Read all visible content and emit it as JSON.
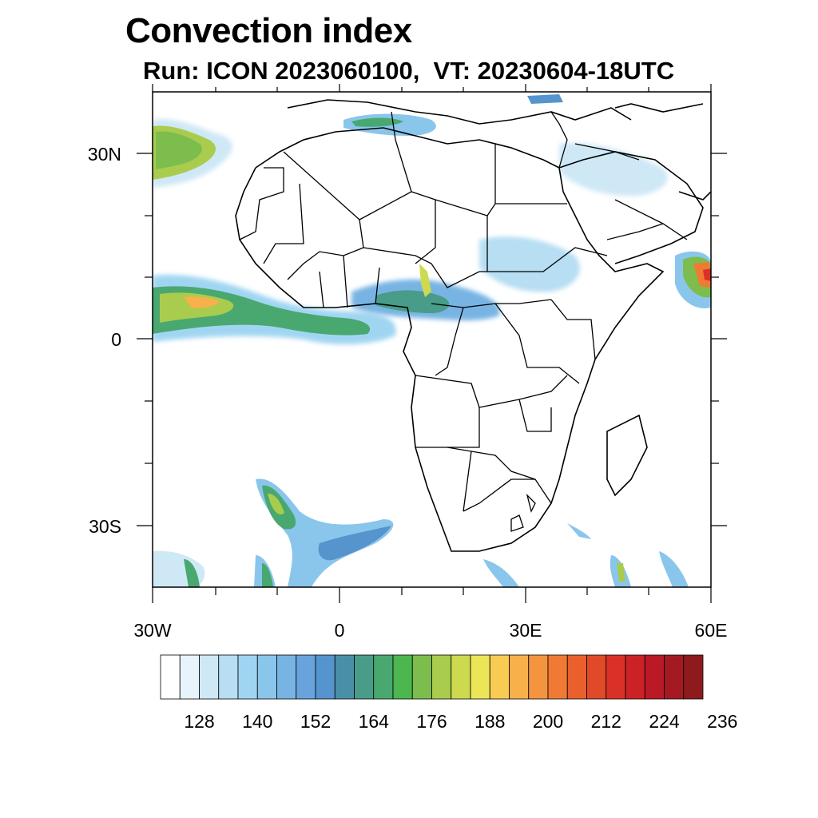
{
  "title": "Convection index",
  "subtitle": "Run: ICON 2023060100,  VT: 20230604-18UTC",
  "y_axis_labels": [
    {
      "text": "30N",
      "lat": 30
    },
    {
      "text": "0",
      "lat": 0
    },
    {
      "text": "30S",
      "lat": -30
    }
  ],
  "x_axis_labels": [
    {
      "text": "30W",
      "lon": -30
    },
    {
      "text": "0",
      "lon": 0
    },
    {
      "text": "30E",
      "lon": 30
    },
    {
      "text": "60E",
      "lon": 60
    }
  ],
  "map_extent": {
    "lon_min": -30,
    "lon_max": 60,
    "lat_min": -40,
    "lat_max": 40
  },
  "colorbar": {
    "colors": [
      "#ffffff",
      "#e8f4fb",
      "#cfe8f6",
      "#b7def3",
      "#a0d5f2",
      "#8ac6ec",
      "#78b4e3",
      "#68a4db",
      "#5594cc",
      "#4a8fa8",
      "#489c88",
      "#49a870",
      "#4cb64f",
      "#7cbd4d",
      "#a9cc4e",
      "#cdd94f",
      "#ece558",
      "#f8cc52",
      "#f8b14a",
      "#f5943e",
      "#f07a34",
      "#e9602d",
      "#e04a29",
      "#d93127",
      "#cc2226",
      "#b91a26",
      "#a51a22",
      "#8f1a1c"
    ],
    "labels": [
      "128",
      "140",
      "152",
      "164",
      "176",
      "188",
      "200",
      "212",
      "224",
      "236"
    ]
  }
}
